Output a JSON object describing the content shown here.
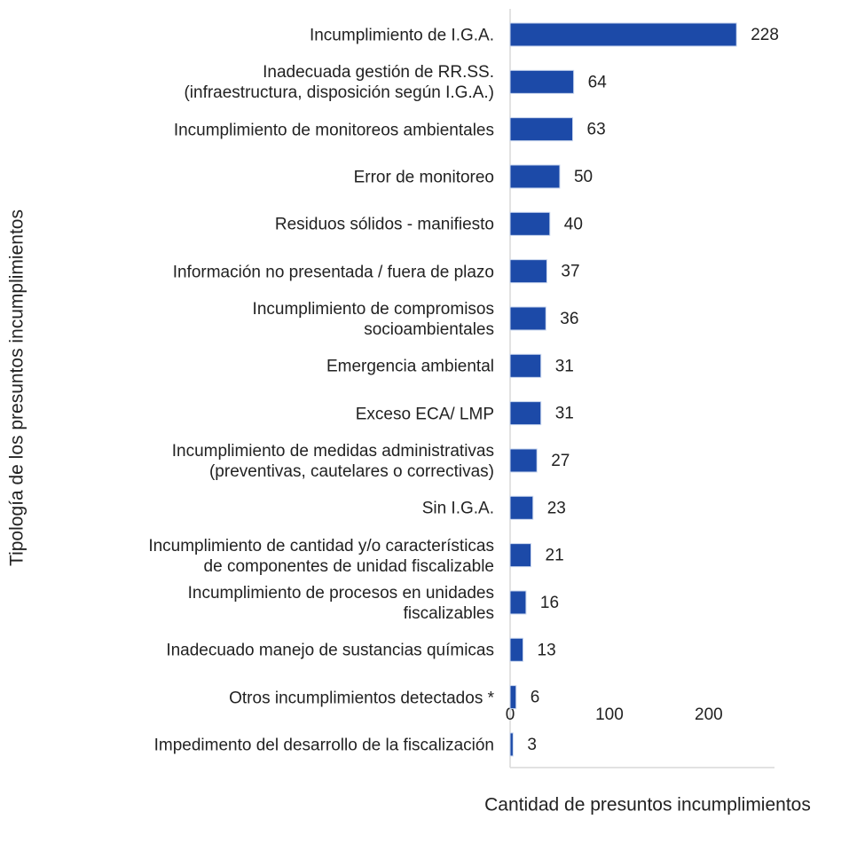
{
  "chart_data": {
    "type": "barh",
    "ylabel": "Tipología de los presuntos incumplimientos",
    "xlabel": "Cantidad de presuntos incumplimientos",
    "categories": [
      "Incumplimiento de I.G.A.",
      "Inadecuada gestión de RR.SS.\n(infraestructura, disposición según I.G.A.)",
      "Incumplimiento de monitoreos ambientales",
      "Error de monitoreo",
      "Residuos sólidos - manifiesto",
      "Información no presentada / fuera de plazo",
      "Incumplimiento de compromisos\nsocioambientales",
      "Emergencia ambiental",
      "Exceso ECA/ LMP",
      "Incumplimiento de medidas administrativas\n(preventivas, cautelares o correctivas)",
      "Sin I.G.A.",
      "Incumplimiento de cantidad y/o características\nde componentes de unidad fiscalizable",
      "Incumplimiento de procesos en unidades\nfiscalizables",
      "Inadecuado manejo de sustancias químicas",
      "Otros incumplimientos detectados *",
      "Impedimento del desarrollo de la fiscalización"
    ],
    "values": [
      228,
      64,
      63,
      50,
      40,
      37,
      36,
      31,
      31,
      27,
      23,
      21,
      16,
      13,
      6,
      3
    ],
    "color": "#1c4aa8",
    "xlim": [
      0,
      268
    ],
    "xticks": [
      0,
      100,
      200
    ],
    "grid": false
  }
}
